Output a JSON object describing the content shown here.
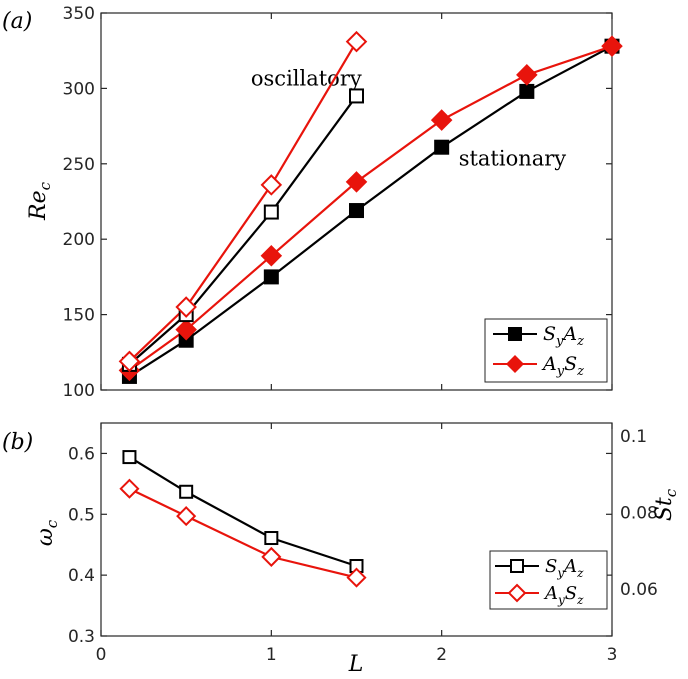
{
  "chart_data": [
    {
      "panel_label": "(a)",
      "type": "line",
      "xlim": [
        0,
        3
      ],
      "ylim": [
        100,
        350
      ],
      "xticks": [
        0,
        1,
        2,
        3
      ],
      "yticks": [
        100,
        150,
        200,
        250,
        300,
        350
      ],
      "ylabel": "Re",
      "ylabel_sub": "c",
      "grid": false,
      "legend_position": "bottom-right",
      "annotations": [
        {
          "text": "oscillatory",
          "x": 0.88,
          "y": 302
        },
        {
          "text": "stationary",
          "x": 2.1,
          "y": 249
        }
      ],
      "series": [
        {
          "name": "SyAz",
          "color": "#000000",
          "marker": "square",
          "filled": true,
          "in_legend": true,
          "x": [
            0.167,
            0.5,
            1.0,
            1.5,
            2.0,
            2.5,
            3.0
          ],
          "y": [
            109,
            133,
            175,
            219,
            261,
            298,
            328
          ]
        },
        {
          "name": "AySz",
          "color": "#e8140c",
          "marker": "diamond",
          "filled": true,
          "in_legend": true,
          "x": [
            0.167,
            0.5,
            1.0,
            1.5,
            2.0,
            2.5,
            3.0
          ],
          "y": [
            113,
            140,
            189,
            238,
            279,
            309,
            328
          ]
        },
        {
          "name": "SyAz",
          "color": "#000000",
          "marker": "square",
          "filled": false,
          "in_legend": false,
          "x": [
            0.167,
            0.5,
            1.0,
            1.5
          ],
          "y": [
            117,
            150,
            218,
            295
          ]
        },
        {
          "name": "AySz",
          "color": "#e8140c",
          "marker": "diamond",
          "filled": false,
          "in_legend": false,
          "x": [
            0.167,
            0.5,
            1.0,
            1.5
          ],
          "y": [
            119,
            155,
            236,
            331
          ]
        }
      ]
    },
    {
      "panel_label": "(b)",
      "type": "line",
      "xlim": [
        0,
        3
      ],
      "ylim": [
        0.3,
        0.65
      ],
      "xticks": [
        0,
        1,
        2,
        3
      ],
      "yticks": [
        0.3,
        0.4,
        0.5,
        0.6
      ],
      "y2ticks": [
        0.06,
        0.08,
        0.1
      ],
      "xlabel": "L",
      "ylabel": "ω",
      "ylabel_sub": "c",
      "y2label": "St",
      "y2label_sub": "c",
      "grid": false,
      "legend_position": "bottom-right",
      "series": [
        {
          "name": "SyAz",
          "color": "#000000",
          "marker": "square",
          "filled": false,
          "x": [
            0.167,
            0.5,
            1.0,
            1.5
          ],
          "y": [
            0.594,
            0.537,
            0.461,
            0.415
          ]
        },
        {
          "name": "AySz",
          "color": "#e8140c",
          "marker": "diamond",
          "filled": false,
          "x": [
            0.167,
            0.5,
            1.0,
            1.5
          ],
          "y": [
            0.542,
            0.497,
            0.43,
            0.396
          ]
        }
      ]
    }
  ],
  "legend_labels": {
    "SyAz": {
      "a": "S",
      "a_sub": "y",
      "b": "A",
      "b_sub": "z"
    },
    "AySz": {
      "a": "A",
      "a_sub": "y",
      "b": "S",
      "b_sub": "z"
    }
  }
}
